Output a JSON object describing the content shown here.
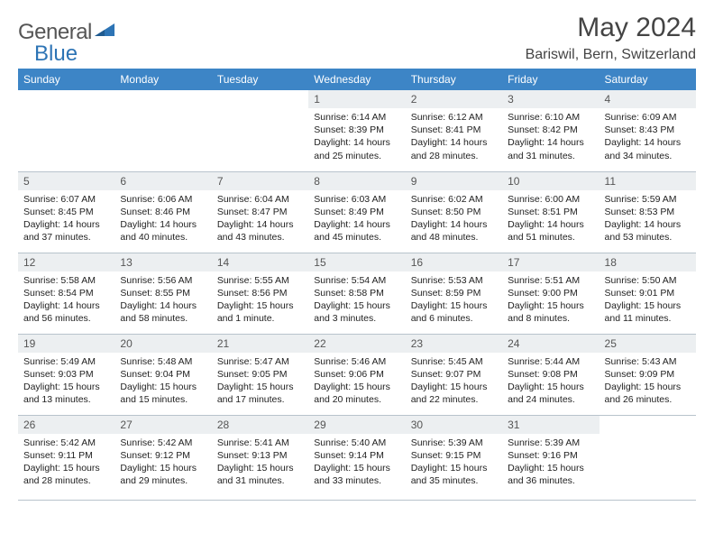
{
  "brand": {
    "general": "General",
    "blue": "Blue"
  },
  "title": "May 2024",
  "location": "Bariswil, Bern, Switzerland",
  "colors": {
    "header_bg": "#3d85c6",
    "daynum_bg": "#eceff1",
    "border": "#b8c3cc",
    "logo_blue": "#2d74b5"
  },
  "weekdays": [
    "Sunday",
    "Monday",
    "Tuesday",
    "Wednesday",
    "Thursday",
    "Friday",
    "Saturday"
  ],
  "weeks": [
    [
      {
        "n": "",
        "sr": "",
        "ss": "",
        "dl": ""
      },
      {
        "n": "",
        "sr": "",
        "ss": "",
        "dl": ""
      },
      {
        "n": "",
        "sr": "",
        "ss": "",
        "dl": ""
      },
      {
        "n": "1",
        "sr": "Sunrise: 6:14 AM",
        "ss": "Sunset: 8:39 PM",
        "dl": "Daylight: 14 hours and 25 minutes."
      },
      {
        "n": "2",
        "sr": "Sunrise: 6:12 AM",
        "ss": "Sunset: 8:41 PM",
        "dl": "Daylight: 14 hours and 28 minutes."
      },
      {
        "n": "3",
        "sr": "Sunrise: 6:10 AM",
        "ss": "Sunset: 8:42 PM",
        "dl": "Daylight: 14 hours and 31 minutes."
      },
      {
        "n": "4",
        "sr": "Sunrise: 6:09 AM",
        "ss": "Sunset: 8:43 PM",
        "dl": "Daylight: 14 hours and 34 minutes."
      }
    ],
    [
      {
        "n": "5",
        "sr": "Sunrise: 6:07 AM",
        "ss": "Sunset: 8:45 PM",
        "dl": "Daylight: 14 hours and 37 minutes."
      },
      {
        "n": "6",
        "sr": "Sunrise: 6:06 AM",
        "ss": "Sunset: 8:46 PM",
        "dl": "Daylight: 14 hours and 40 minutes."
      },
      {
        "n": "7",
        "sr": "Sunrise: 6:04 AM",
        "ss": "Sunset: 8:47 PM",
        "dl": "Daylight: 14 hours and 43 minutes."
      },
      {
        "n": "8",
        "sr": "Sunrise: 6:03 AM",
        "ss": "Sunset: 8:49 PM",
        "dl": "Daylight: 14 hours and 45 minutes."
      },
      {
        "n": "9",
        "sr": "Sunrise: 6:02 AM",
        "ss": "Sunset: 8:50 PM",
        "dl": "Daylight: 14 hours and 48 minutes."
      },
      {
        "n": "10",
        "sr": "Sunrise: 6:00 AM",
        "ss": "Sunset: 8:51 PM",
        "dl": "Daylight: 14 hours and 51 minutes."
      },
      {
        "n": "11",
        "sr": "Sunrise: 5:59 AM",
        "ss": "Sunset: 8:53 PM",
        "dl": "Daylight: 14 hours and 53 minutes."
      }
    ],
    [
      {
        "n": "12",
        "sr": "Sunrise: 5:58 AM",
        "ss": "Sunset: 8:54 PM",
        "dl": "Daylight: 14 hours and 56 minutes."
      },
      {
        "n": "13",
        "sr": "Sunrise: 5:56 AM",
        "ss": "Sunset: 8:55 PM",
        "dl": "Daylight: 14 hours and 58 minutes."
      },
      {
        "n": "14",
        "sr": "Sunrise: 5:55 AM",
        "ss": "Sunset: 8:56 PM",
        "dl": "Daylight: 15 hours and 1 minute."
      },
      {
        "n": "15",
        "sr": "Sunrise: 5:54 AM",
        "ss": "Sunset: 8:58 PM",
        "dl": "Daylight: 15 hours and 3 minutes."
      },
      {
        "n": "16",
        "sr": "Sunrise: 5:53 AM",
        "ss": "Sunset: 8:59 PM",
        "dl": "Daylight: 15 hours and 6 minutes."
      },
      {
        "n": "17",
        "sr": "Sunrise: 5:51 AM",
        "ss": "Sunset: 9:00 PM",
        "dl": "Daylight: 15 hours and 8 minutes."
      },
      {
        "n": "18",
        "sr": "Sunrise: 5:50 AM",
        "ss": "Sunset: 9:01 PM",
        "dl": "Daylight: 15 hours and 11 minutes."
      }
    ],
    [
      {
        "n": "19",
        "sr": "Sunrise: 5:49 AM",
        "ss": "Sunset: 9:03 PM",
        "dl": "Daylight: 15 hours and 13 minutes."
      },
      {
        "n": "20",
        "sr": "Sunrise: 5:48 AM",
        "ss": "Sunset: 9:04 PM",
        "dl": "Daylight: 15 hours and 15 minutes."
      },
      {
        "n": "21",
        "sr": "Sunrise: 5:47 AM",
        "ss": "Sunset: 9:05 PM",
        "dl": "Daylight: 15 hours and 17 minutes."
      },
      {
        "n": "22",
        "sr": "Sunrise: 5:46 AM",
        "ss": "Sunset: 9:06 PM",
        "dl": "Daylight: 15 hours and 20 minutes."
      },
      {
        "n": "23",
        "sr": "Sunrise: 5:45 AM",
        "ss": "Sunset: 9:07 PM",
        "dl": "Daylight: 15 hours and 22 minutes."
      },
      {
        "n": "24",
        "sr": "Sunrise: 5:44 AM",
        "ss": "Sunset: 9:08 PM",
        "dl": "Daylight: 15 hours and 24 minutes."
      },
      {
        "n": "25",
        "sr": "Sunrise: 5:43 AM",
        "ss": "Sunset: 9:09 PM",
        "dl": "Daylight: 15 hours and 26 minutes."
      }
    ],
    [
      {
        "n": "26",
        "sr": "Sunrise: 5:42 AM",
        "ss": "Sunset: 9:11 PM",
        "dl": "Daylight: 15 hours and 28 minutes."
      },
      {
        "n": "27",
        "sr": "Sunrise: 5:42 AM",
        "ss": "Sunset: 9:12 PM",
        "dl": "Daylight: 15 hours and 29 minutes."
      },
      {
        "n": "28",
        "sr": "Sunrise: 5:41 AM",
        "ss": "Sunset: 9:13 PM",
        "dl": "Daylight: 15 hours and 31 minutes."
      },
      {
        "n": "29",
        "sr": "Sunrise: 5:40 AM",
        "ss": "Sunset: 9:14 PM",
        "dl": "Daylight: 15 hours and 33 minutes."
      },
      {
        "n": "30",
        "sr": "Sunrise: 5:39 AM",
        "ss": "Sunset: 9:15 PM",
        "dl": "Daylight: 15 hours and 35 minutes."
      },
      {
        "n": "31",
        "sr": "Sunrise: 5:39 AM",
        "ss": "Sunset: 9:16 PM",
        "dl": "Daylight: 15 hours and 36 minutes."
      },
      {
        "n": "",
        "sr": "",
        "ss": "",
        "dl": ""
      }
    ]
  ]
}
